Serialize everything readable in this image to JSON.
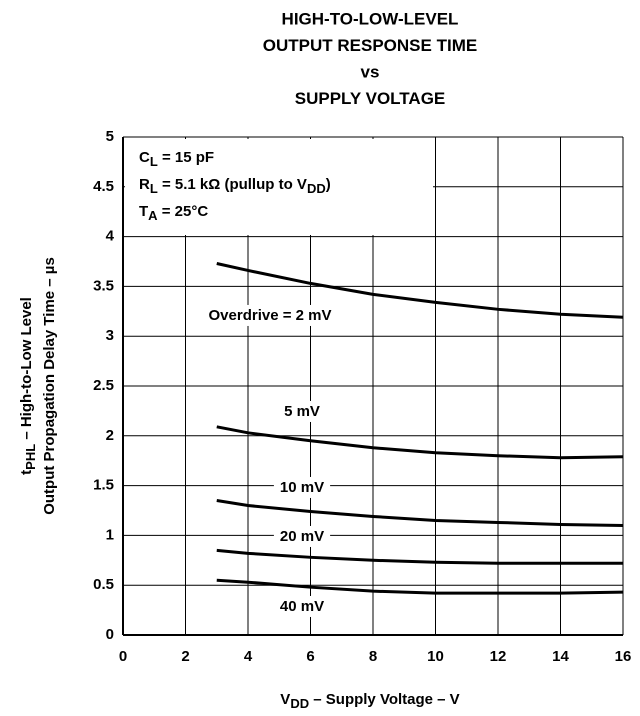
{
  "chart_data": {
    "type": "line",
    "title": [
      "HIGH-TO-LOW-LEVEL",
      "OUTPUT RESPONSE TIME",
      "vs",
      "SUPPLY VOLTAGE"
    ],
    "x_label": [
      "V",
      "DD",
      " – Supply Voltage – V"
    ],
    "y_label": [
      [
        "t",
        "PHL",
        " – High-to-Low Level"
      ],
      [
        "Output Propagation Delay Time – µs"
      ]
    ],
    "annotations": [
      [
        "C",
        "L",
        " = 15 pF"
      ],
      [
        "R",
        "L",
        " = 5.1 kΩ (pullup to V",
        "DD",
        ")"
      ],
      [
        "T",
        "A",
        " =  25°C"
      ]
    ],
    "x": [
      3,
      4,
      6,
      8,
      10,
      12,
      14,
      16
    ],
    "series": [
      {
        "name": "Overdrive = 2 mV",
        "color": "#000000",
        "values": [
          3.73,
          3.66,
          3.53,
          3.42,
          3.34,
          3.27,
          3.22,
          3.19
        ]
      },
      {
        "name": "5 mV",
        "color": "#000000",
        "values": [
          2.09,
          2.03,
          1.95,
          1.88,
          1.83,
          1.8,
          1.78,
          1.79
        ]
      },
      {
        "name": "10 mV",
        "color": "#000000",
        "values": [
          1.35,
          1.3,
          1.24,
          1.19,
          1.15,
          1.13,
          1.11,
          1.1
        ]
      },
      {
        "name": "20 mV",
        "color": "#000000",
        "values": [
          0.85,
          0.82,
          0.78,
          0.75,
          0.73,
          0.72,
          0.72,
          0.72
        ]
      },
      {
        "name": "40 mV",
        "color": "#000000",
        "values": [
          0.55,
          0.53,
          0.48,
          0.44,
          0.42,
          0.42,
          0.42,
          0.43
        ]
      }
    ],
    "xlim": [
      0,
      16
    ],
    "xticks": [
      0,
      2,
      4,
      6,
      8,
      10,
      12,
      14,
      16
    ],
    "ylim": [
      0,
      5
    ],
    "yticks": [
      0,
      0.5,
      1,
      1.5,
      2,
      2.5,
      3,
      3.5,
      4,
      4.5,
      5
    ],
    "grid": true
  }
}
